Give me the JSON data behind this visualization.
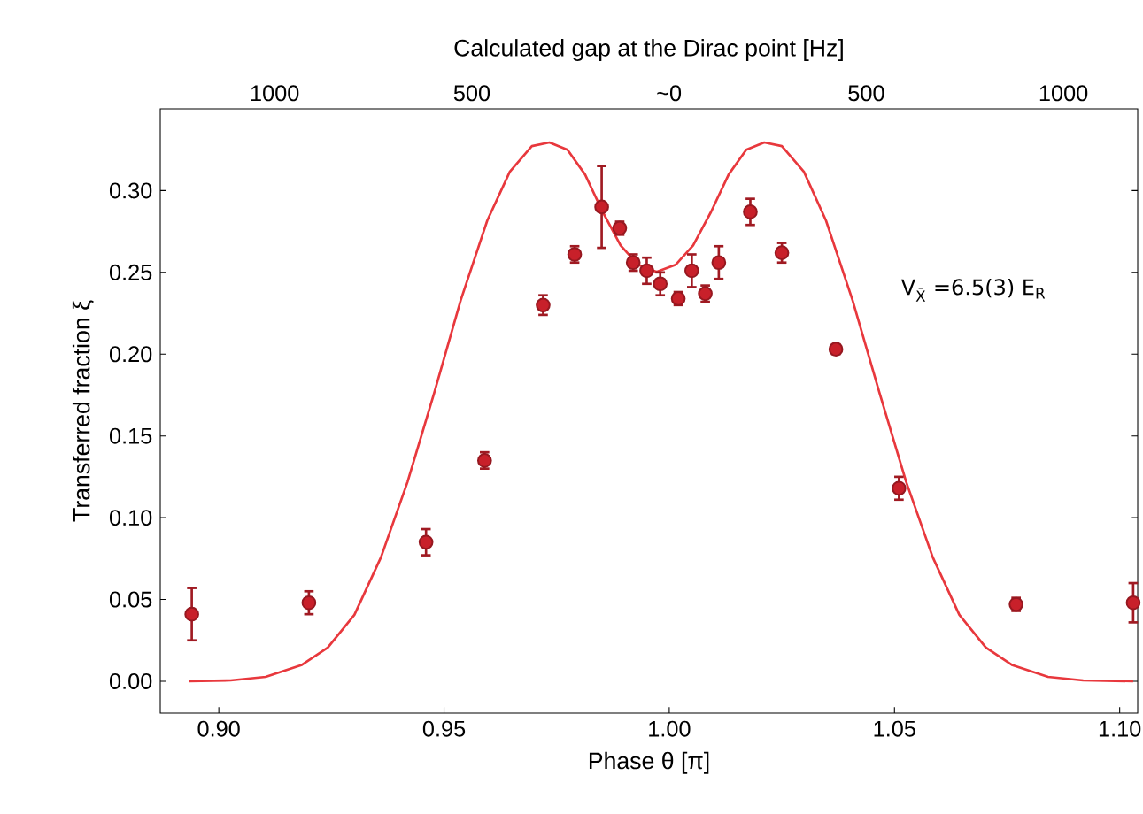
{
  "chart_data": {
    "type": "scatter",
    "x2label": "Calculated gap at the Dirac point [Hz]",
    "xlabel": "Phase θ [π]",
    "ylabel": "Transferred fraction ξ",
    "xlim": [
      0.887,
      1.104
    ],
    "ylim": [
      -0.0195,
      0.35
    ],
    "xticks": [
      {
        "value": 0.9,
        "label": "0.90"
      },
      {
        "value": 0.95,
        "label": "0.95"
      },
      {
        "value": 1.0,
        "label": "1.00"
      },
      {
        "value": 1.05,
        "label": "1.05"
      },
      {
        "value": 1.1,
        "label": "1.10"
      }
    ],
    "yticks": [
      {
        "value": 0,
        "label": "0.00"
      },
      {
        "value": 0.05,
        "label": "0.05"
      },
      {
        "value": 0.1,
        "label": "0.10"
      },
      {
        "value": 0.15,
        "label": "0.15"
      },
      {
        "value": 0.2,
        "label": "0.20"
      },
      {
        "value": 0.25,
        "label": "0.25"
      },
      {
        "value": 0.3,
        "label": "0.30"
      }
    ],
    "annotations": [
      "V$_{X̄}$ =6.5(3) E$_{R}$",
      "1000",
      "500",
      "~0",
      "500",
      "1000"
    ],
    "series": [
      {
        "type": "line",
        "color": "#e8383d",
        "line_style": "solid",
        "marker": "none",
        "x": [
          0.8933,
          0.9026,
          0.9104,
          0.9183,
          0.9242,
          0.9301,
          0.936,
          0.9419,
          0.9478,
          0.9537,
          0.9596,
          0.9646,
          0.9695,
          0.9734,
          0.9774,
          0.9813,
          0.9852,
          0.9892,
          0.9931,
          0.9972,
          1.0014,
          1.0053,
          1.0093,
          1.0132,
          1.0171,
          1.0211,
          1.025,
          1.0299,
          1.0348,
          1.0407,
          1.0467,
          1.0526,
          1.0585,
          1.0644,
          1.0703,
          1.0762,
          1.0841,
          1.0919,
          1.103
        ],
        "values": [
          0,
          0.0005,
          0.0027,
          0.0098,
          0.0206,
          0.0406,
          0.0758,
          0.1219,
          0.1761,
          0.2329,
          0.2817,
          0.3115,
          0.3272,
          0.3294,
          0.325,
          0.3099,
          0.2871,
          0.2665,
          0.2546,
          0.2503,
          0.2546,
          0.2665,
          0.2871,
          0.3099,
          0.325,
          0.3294,
          0.3272,
          0.3115,
          0.2817,
          0.2329,
          0.1761,
          0.1219,
          0.0758,
          0.0406,
          0.0206,
          0.0098,
          0.0027,
          0.0005,
          0
        ]
      },
      {
        "color": "#c8202a",
        "marker": "circle",
        "x": [
          0.894,
          0.92,
          0.946,
          0.959,
          0.972,
          0.979,
          0.985,
          0.989,
          0.992,
          0.995,
          0.998,
          1.002,
          1.005,
          1.008,
          1.011,
          1.018,
          1.025,
          1.037,
          1.051,
          1.077,
          1.103
        ],
        "values": [
          0.041,
          0.048,
          0.085,
          0.135,
          0.23,
          0.261,
          0.29,
          0.277,
          0.256,
          0.251,
          0.243,
          0.234,
          0.251,
          0.237,
          0.256,
          0.287,
          0.262,
          0.203,
          0.118,
          0.047,
          0.048
        ],
        "errors": [
          0.016,
          0.007,
          0.008,
          0.005,
          0.006,
          0.005,
          0.025,
          0.004,
          0.005,
          0.008,
          0.007,
          0.004,
          0.01,
          0.005,
          0.01,
          0.008,
          0.006,
          0.003,
          0.007,
          0.004,
          0.012
        ]
      }
    ]
  }
}
